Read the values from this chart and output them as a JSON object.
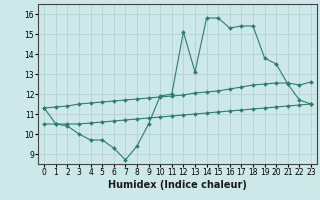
{
  "xlabel": "Humidex (Indice chaleur)",
  "hours": [
    0,
    1,
    2,
    3,
    4,
    5,
    6,
    7,
    8,
    9,
    10,
    11,
    12,
    13,
    14,
    15,
    16,
    17,
    18,
    19,
    20,
    21,
    22,
    23
  ],
  "humidex": [
    11.3,
    10.5,
    10.4,
    10.0,
    9.7,
    9.7,
    9.3,
    8.7,
    9.4,
    10.5,
    11.9,
    12.0,
    15.1,
    13.1,
    15.8,
    15.8,
    15.3,
    15.4,
    15.4,
    13.8,
    13.5,
    12.5,
    11.7,
    11.5
  ],
  "upper_line": [
    11.3,
    11.35,
    11.4,
    11.5,
    11.55,
    11.6,
    11.65,
    11.7,
    11.75,
    11.8,
    11.85,
    11.9,
    11.95,
    12.05,
    12.1,
    12.15,
    12.25,
    12.35,
    12.45,
    12.5,
    12.55,
    12.55,
    12.45,
    12.6
  ],
  "lower_line": [
    10.5,
    10.5,
    10.5,
    10.5,
    10.55,
    10.6,
    10.65,
    10.7,
    10.75,
    10.8,
    10.85,
    10.9,
    10.95,
    11.0,
    11.05,
    11.1,
    11.15,
    11.2,
    11.25,
    11.3,
    11.35,
    11.4,
    11.45,
    11.5
  ],
  "line_color": "#2d7d6e",
  "bg_color": "#cce8e8",
  "grid_color": "#b8d8d8",
  "ylim": [
    8.5,
    16.5
  ],
  "yticks": [
    9,
    10,
    11,
    12,
    13,
    14,
    15,
    16
  ],
  "xticks": [
    0,
    1,
    2,
    3,
    4,
    5,
    6,
    7,
    8,
    9,
    10,
    11,
    12,
    13,
    14,
    15,
    16,
    17,
    18,
    19,
    20,
    21,
    22,
    23
  ],
  "xlabel_fontsize": 7,
  "tick_fontsize": 5.5,
  "marker_size": 2.0,
  "linewidth": 0.8
}
